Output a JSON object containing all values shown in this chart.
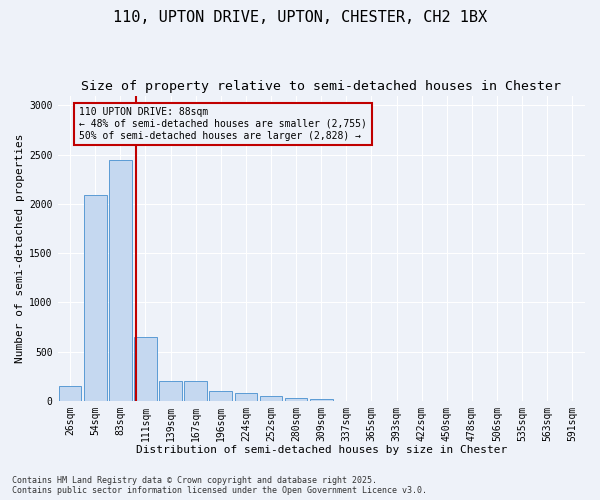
{
  "title1": "110, UPTON DRIVE, UPTON, CHESTER, CH2 1BX",
  "title2": "Size of property relative to semi-detached houses in Chester",
  "xlabel": "Distribution of semi-detached houses by size in Chester",
  "ylabel": "Number of semi-detached properties",
  "categories": [
    "26sqm",
    "54sqm",
    "83sqm",
    "111sqm",
    "139sqm",
    "167sqm",
    "196sqm",
    "224sqm",
    "252sqm",
    "280sqm",
    "309sqm",
    "337sqm",
    "365sqm",
    "393sqm",
    "422sqm",
    "450sqm",
    "478sqm",
    "506sqm",
    "535sqm",
    "563sqm",
    "591sqm"
  ],
  "values": [
    150,
    2090,
    2450,
    650,
    200,
    200,
    100,
    75,
    50,
    30,
    20,
    0,
    0,
    0,
    0,
    0,
    0,
    0,
    0,
    0,
    0
  ],
  "bar_color": "#c5d8f0",
  "bar_edge_color": "#5b9bd5",
  "vline_color": "#c00000",
  "annotation_title": "110 UPTON DRIVE: 88sqm",
  "annotation_line1": "← 48% of semi-detached houses are smaller (2,755)",
  "annotation_line2": "50% of semi-detached houses are larger (2,828) →",
  "annotation_box_color": "#c00000",
  "ylim": [
    0,
    3100
  ],
  "yticks": [
    0,
    500,
    1000,
    1500,
    2000,
    2500,
    3000
  ],
  "footer1": "Contains HM Land Registry data © Crown copyright and database right 2025.",
  "footer2": "Contains public sector information licensed under the Open Government Licence v3.0.",
  "background_color": "#eef2f9",
  "grid_color": "#ffffff",
  "title_fontsize": 11,
  "subtitle_fontsize": 9.5,
  "axis_label_fontsize": 8,
  "tick_fontsize": 7,
  "footer_fontsize": 6
}
